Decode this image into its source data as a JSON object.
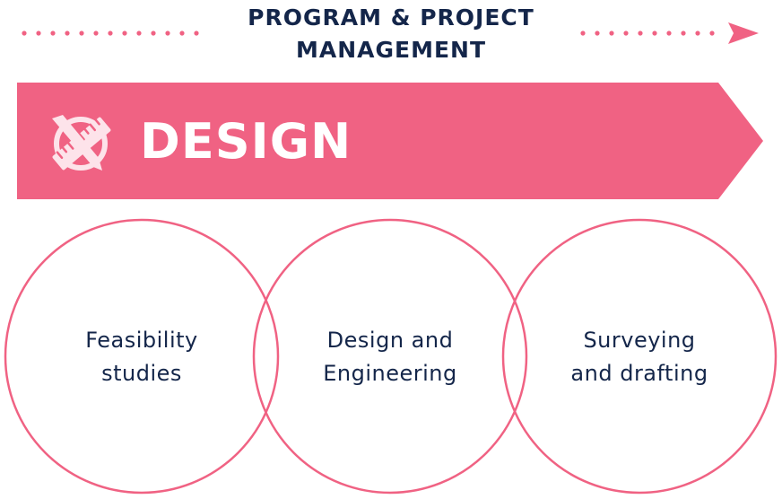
{
  "header": {
    "line1": "PROGRAM & PROJECT",
    "line2": "MANAGEMENT"
  },
  "banner": {
    "label": "DESIGN",
    "icon": "compass-ruler-icon"
  },
  "circles": [
    {
      "line1": "Feasibility",
      "line2": "studies"
    },
    {
      "line1": "Design and",
      "line2": "Engineering"
    },
    {
      "line1": "Surveying",
      "line2": "and drafting"
    }
  ],
  "colors": {
    "accent": "#f06283",
    "text": "#14264a",
    "icon": "#fde3ea"
  }
}
